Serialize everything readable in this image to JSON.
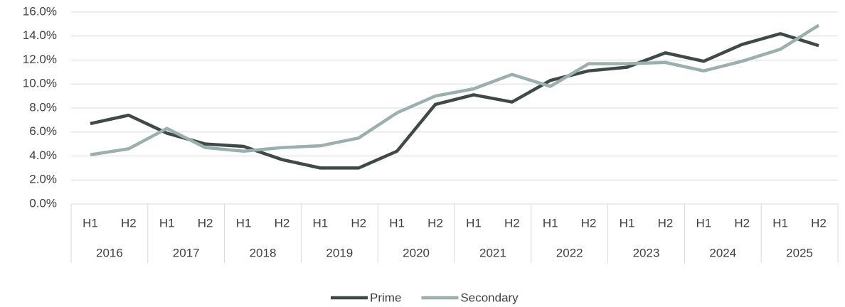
{
  "chart_data": {
    "type": "line",
    "categories": [
      "H1",
      "H2",
      "H1",
      "H2",
      "H1",
      "H2",
      "H1",
      "H2",
      "H1",
      "H2",
      "H1",
      "H2",
      "H1",
      "H2",
      "H1",
      "H2",
      "H1",
      "H2",
      "H1",
      "H2"
    ],
    "category_groups": [
      "2016",
      "2017",
      "2018",
      "2019",
      "2020",
      "2021",
      "2022",
      "2023",
      "2024",
      "2025"
    ],
    "series": [
      {
        "name": "Prime",
        "color": "#3f4a48",
        "values": [
          6.7,
          7.4,
          5.9,
          5.0,
          4.8,
          3.7,
          3.0,
          3.0,
          4.4,
          8.3,
          9.1,
          8.5,
          10.3,
          11.1,
          11.4,
          12.6,
          11.9,
          13.3,
          14.2,
          13.2
        ]
      },
      {
        "name": "Secondary",
        "color": "#9bb0ae",
        "values": [
          4.1,
          4.6,
          6.3,
          4.7,
          4.4,
          4.7,
          4.85,
          5.5,
          7.6,
          9.0,
          9.6,
          10.8,
          9.8,
          11.7,
          11.7,
          11.8,
          11.1,
          11.9,
          12.9,
          14.9
        ]
      }
    ],
    "ylim": [
      0,
      16
    ],
    "yticks": [
      {
        "value": 0,
        "label": "0.0%"
      },
      {
        "value": 2,
        "label": "2.0%"
      },
      {
        "value": 4,
        "label": "4.0%"
      },
      {
        "value": 6,
        "label": "6.0%"
      },
      {
        "value": 8,
        "label": "8.0%"
      },
      {
        "value": 10,
        "label": "10.0%"
      },
      {
        "value": 12,
        "label": "12.0%"
      },
      {
        "value": 14,
        "label": "14.0%"
      },
      {
        "value": 16,
        "label": "16.0%"
      }
    ],
    "grid": true,
    "legend": "bottom"
  }
}
